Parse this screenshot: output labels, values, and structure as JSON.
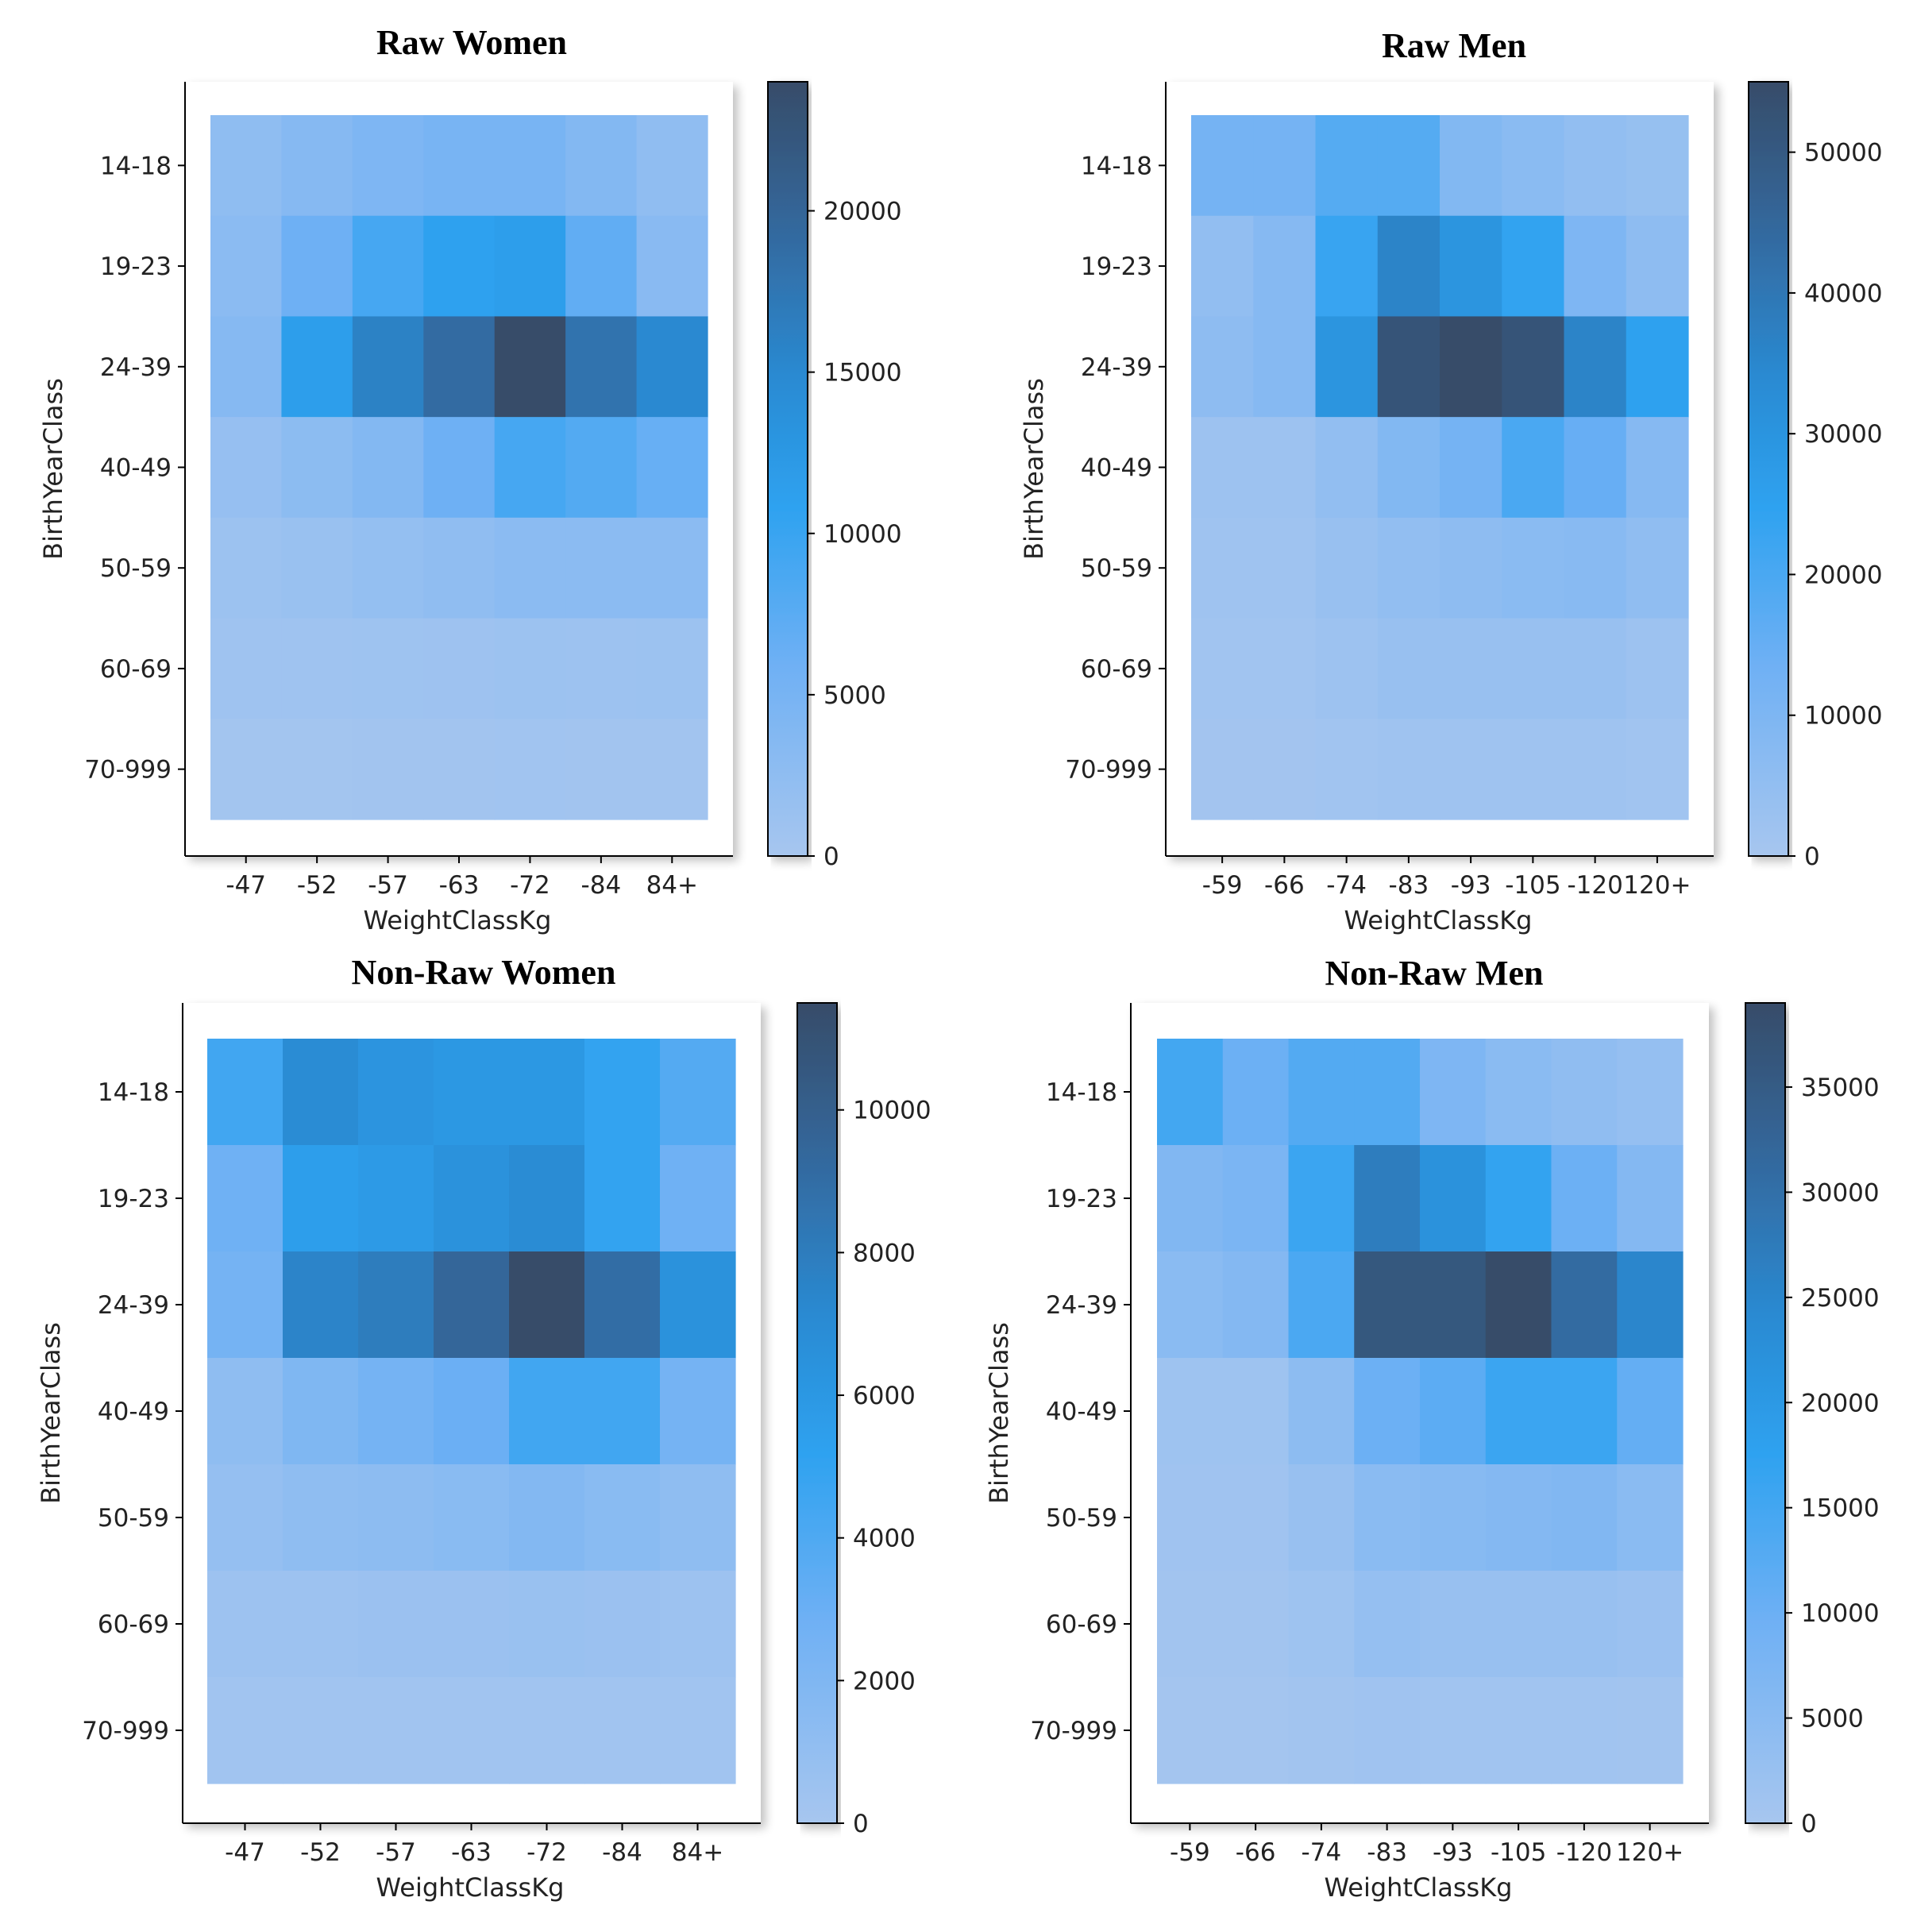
{
  "chart_data": [
    {
      "type": "heatmap",
      "title": "Raw Women",
      "xlabel": "WeightClassKg",
      "ylabel": "BirthYearClass",
      "x_categories": [
        "-47",
        "-52",
        "-57",
        "-63",
        "-72",
        "-84",
        "84+"
      ],
      "y_categories": [
        "14-18",
        "19-23",
        "24-39",
        "40-49",
        "50-59",
        "60-69",
        "70-999"
      ],
      "values": [
        [
          2500,
          3500,
          4300,
          5000,
          5000,
          3800,
          2400
        ],
        [
          3000,
          6000,
          9000,
          11000,
          11500,
          7000,
          3200
        ],
        [
          3500,
          11500,
          16000,
          19000,
          24000,
          18000,
          15000
        ],
        [
          1800,
          2800,
          3800,
          6000,
          9000,
          8000,
          6500
        ],
        [
          1200,
          1500,
          2000,
          2400,
          3000,
          3000,
          3000
        ],
        [
          800,
          800,
          900,
          1000,
          1200,
          1100,
          1200
        ],
        [
          400,
          400,
          500,
          500,
          600,
          500,
          500
        ]
      ],
      "colorbar": {
        "min": 0,
        "max": 24000,
        "ticks": [
          "0",
          "5000",
          "10000",
          "15000",
          "20000"
        ],
        "tick_values": [
          0,
          5000,
          10000,
          15000,
          20000
        ]
      }
    },
    {
      "type": "heatmap",
      "title": "Raw Men",
      "xlabel": "WeightClassKg",
      "ylabel": "BirthYearClass",
      "x_categories": [
        "-59",
        "-66",
        "-74",
        "-83",
        "-93",
        "-105",
        "-120",
        "120+"
      ],
      "y_categories": [
        "14-18",
        "19-23",
        "24-39",
        "40-49",
        "50-59",
        "60-69",
        "70-999"
      ],
      "values": [
        [
          12000,
          12000,
          18000,
          18000,
          9000,
          7000,
          5000,
          4000
        ],
        [
          5000,
          8000,
          23000,
          36000,
          30000,
          24000,
          10000,
          6000
        ],
        [
          6000,
          8000,
          30000,
          52000,
          55000,
          52000,
          36000,
          25000
        ],
        [
          2500,
          2500,
          5000,
          9000,
          12000,
          20000,
          15000,
          8000
        ],
        [
          2000,
          2000,
          3500,
          5000,
          6000,
          7000,
          7500,
          5500
        ],
        [
          1500,
          1500,
          2500,
          3500,
          3500,
          3500,
          3500,
          2500
        ],
        [
          1000,
          1000,
          1500,
          2000,
          2000,
          2000,
          2000,
          1500
        ]
      ],
      "colorbar": {
        "min": 0,
        "max": 55000,
        "ticks": [
          "0",
          "10000",
          "20000",
          "30000",
          "40000",
          "50000"
        ],
        "tick_values": [
          0,
          10000,
          20000,
          30000,
          40000,
          50000
        ]
      }
    },
    {
      "type": "heatmap",
      "title": "Non-Raw Women",
      "xlabel": "WeightClassKg",
      "ylabel": "BirthYearClass",
      "x_categories": [
        "-47",
        "-52",
        "-57",
        "-63",
        "-72",
        "-84",
        "84+"
      ],
      "y_categories": [
        "14-18",
        "19-23",
        "24-39",
        "40-49",
        "50-59",
        "60-69",
        "70-999"
      ],
      "values": [
        [
          4500,
          7000,
          6300,
          6000,
          6000,
          5000,
          3800
        ],
        [
          2800,
          5500,
          5800,
          6500,
          7000,
          5000,
          2800
        ],
        [
          2500,
          7500,
          8000,
          9500,
          11500,
          9000,
          6500
        ],
        [
          1200,
          2000,
          2500,
          3000,
          4500,
          4500,
          2500
        ],
        [
          900,
          1200,
          1300,
          1500,
          1800,
          1500,
          1200
        ],
        [
          500,
          500,
          600,
          600,
          700,
          600,
          500
        ],
        [
          300,
          300,
          300,
          300,
          300,
          300,
          300
        ]
      ],
      "colorbar": {
        "min": 0,
        "max": 11500,
        "ticks": [
          "0",
          "2000",
          "4000",
          "6000",
          "8000",
          "10000"
        ],
        "tick_values": [
          0,
          2000,
          4000,
          6000,
          8000,
          10000
        ]
      }
    },
    {
      "type": "heatmap",
      "title": "Non-Raw Men",
      "xlabel": "WeightClassKg",
      "ylabel": "BirthYearClass",
      "x_categories": [
        "-59",
        "-66",
        "-74",
        "-83",
        "-93",
        "-105",
        "-120",
        "120+"
      ],
      "y_categories": [
        "14-18",
        "19-23",
        "24-39",
        "40-49",
        "50-59",
        "60-69",
        "70-999"
      ],
      "values": [
        [
          15000,
          10000,
          13000,
          13000,
          7000,
          5000,
          4000,
          3000
        ],
        [
          6500,
          7500,
          16000,
          27000,
          22000,
          17000,
          10000,
          6000
        ],
        [
          5000,
          6000,
          14000,
          36000,
          36000,
          39000,
          31000,
          25000
        ],
        [
          1500,
          1500,
          4500,
          10000,
          12000,
          16000,
          16000,
          11000
        ],
        [
          1200,
          1200,
          2500,
          5000,
          5500,
          6000,
          6500,
          5000
        ],
        [
          900,
          900,
          1500,
          3000,
          2500,
          2500,
          2500,
          2000
        ],
        [
          500,
          500,
          800,
          1200,
          1000,
          1000,
          1000,
          800
        ]
      ],
      "colorbar": {
        "min": 0,
        "max": 39000,
        "ticks": [
          "0",
          "5000",
          "10000",
          "15000",
          "20000",
          "25000",
          "30000",
          "35000"
        ],
        "tick_values": [
          0,
          5000,
          10000,
          15000,
          20000,
          25000,
          30000,
          35000
        ]
      }
    }
  ]
}
